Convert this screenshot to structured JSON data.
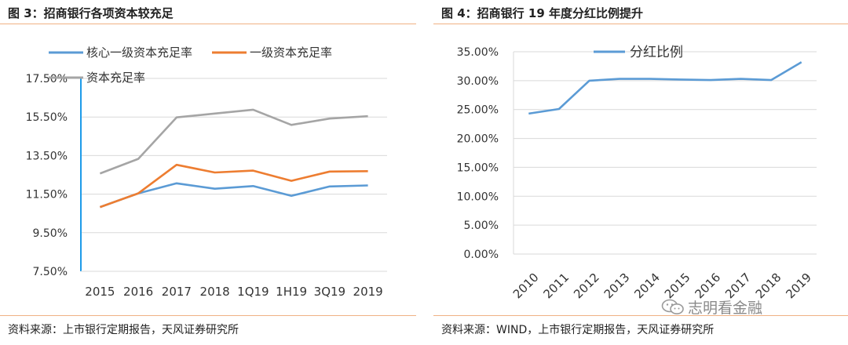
{
  "left": {
    "figure_title": "图 3：招商银行各项资本较充足",
    "source": "资料来源：上市银行定期报告，天风证券研究所"
  },
  "right": {
    "figure_title": "图 4：招商银行 19 年度分红比例提升",
    "source": "资料来源：WIND，上市银行定期报告，天风证券研究所"
  },
  "watermark": {
    "text": "志明看金融",
    "icon": "wechat-bubble-icon"
  },
  "chart_data": [
    {
      "type": "line",
      "title": "招商银行各项资本较充足",
      "xlabel": "",
      "ylabel": "",
      "categories": [
        "2015",
        "2016",
        "2017",
        "2018",
        "1Q19",
        "1H19",
        "3Q19",
        "2019"
      ],
      "ylim": [
        7.5,
        17.5
      ],
      "yticks": [
        "7.50%",
        "9.50%",
        "11.50%",
        "13.50%",
        "15.50%",
        "17.50%"
      ],
      "ytick_values": [
        7.5,
        9.5,
        11.5,
        13.5,
        15.5,
        17.5
      ],
      "series": [
        {
          "name": "核心一级资本充足率",
          "color": "#5b9bd5",
          "values": [
            10.83,
            11.54,
            12.06,
            11.78,
            11.92,
            11.41,
            11.9,
            11.95
          ]
        },
        {
          "name": "一级资本充足率",
          "color": "#ed7d31",
          "values": [
            10.83,
            11.54,
            13.02,
            12.62,
            12.72,
            12.19,
            12.67,
            12.69
          ]
        },
        {
          "name": "资本充足率",
          "color": "#a5a5a5",
          "values": [
            12.57,
            13.33,
            15.48,
            15.68,
            15.88,
            15.09,
            15.42,
            15.54
          ]
        }
      ],
      "legend_position": "top"
    },
    {
      "type": "line",
      "title": "招商银行19年度分红比例提升",
      "xlabel": "",
      "ylabel": "",
      "categories": [
        "2010",
        "2011",
        "2012",
        "2013",
        "2014",
        "2015",
        "2016",
        "2017",
        "2018",
        "2019"
      ],
      "ylim": [
        0,
        35
      ],
      "yticks": [
        "0.00%",
        "5.00%",
        "10.00%",
        "15.00%",
        "20.00%",
        "25.00%",
        "30.00%",
        "35.00%"
      ],
      "ytick_values": [
        0,
        5,
        10,
        15,
        20,
        25,
        30,
        35
      ],
      "series": [
        {
          "name": "分红比例",
          "color": "#5b9bd5",
          "values": [
            24.3,
            25.1,
            30.0,
            30.3,
            30.3,
            30.2,
            30.1,
            30.3,
            30.1,
            33.2
          ]
        }
      ],
      "legend_position": "top"
    }
  ]
}
